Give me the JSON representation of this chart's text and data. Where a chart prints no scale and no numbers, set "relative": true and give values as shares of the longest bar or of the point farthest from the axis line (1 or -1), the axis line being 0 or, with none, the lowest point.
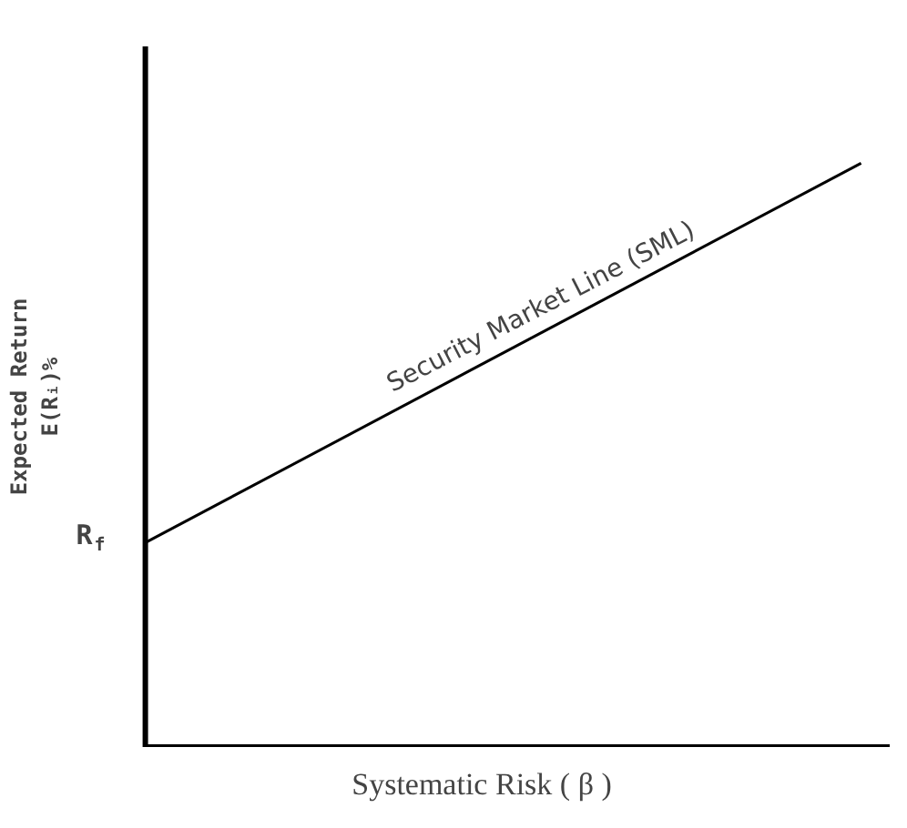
{
  "chart_data": {
    "type": "line",
    "relative": true,
    "categories": [
      null,
      null
    ],
    "series": [
      {
        "name": "Security Market Line (SML)",
        "color": "#000000",
        "values": [
          0.35,
          1
        ]
      }
    ],
    "xlabel": "Systematic Risk ( β )",
    "ylabel": "Expected Return\nE(Rᵢ)%",
    "annotations": [
      "R$_{f}$"
    ],
    "grid": false,
    "legend": false
  }
}
